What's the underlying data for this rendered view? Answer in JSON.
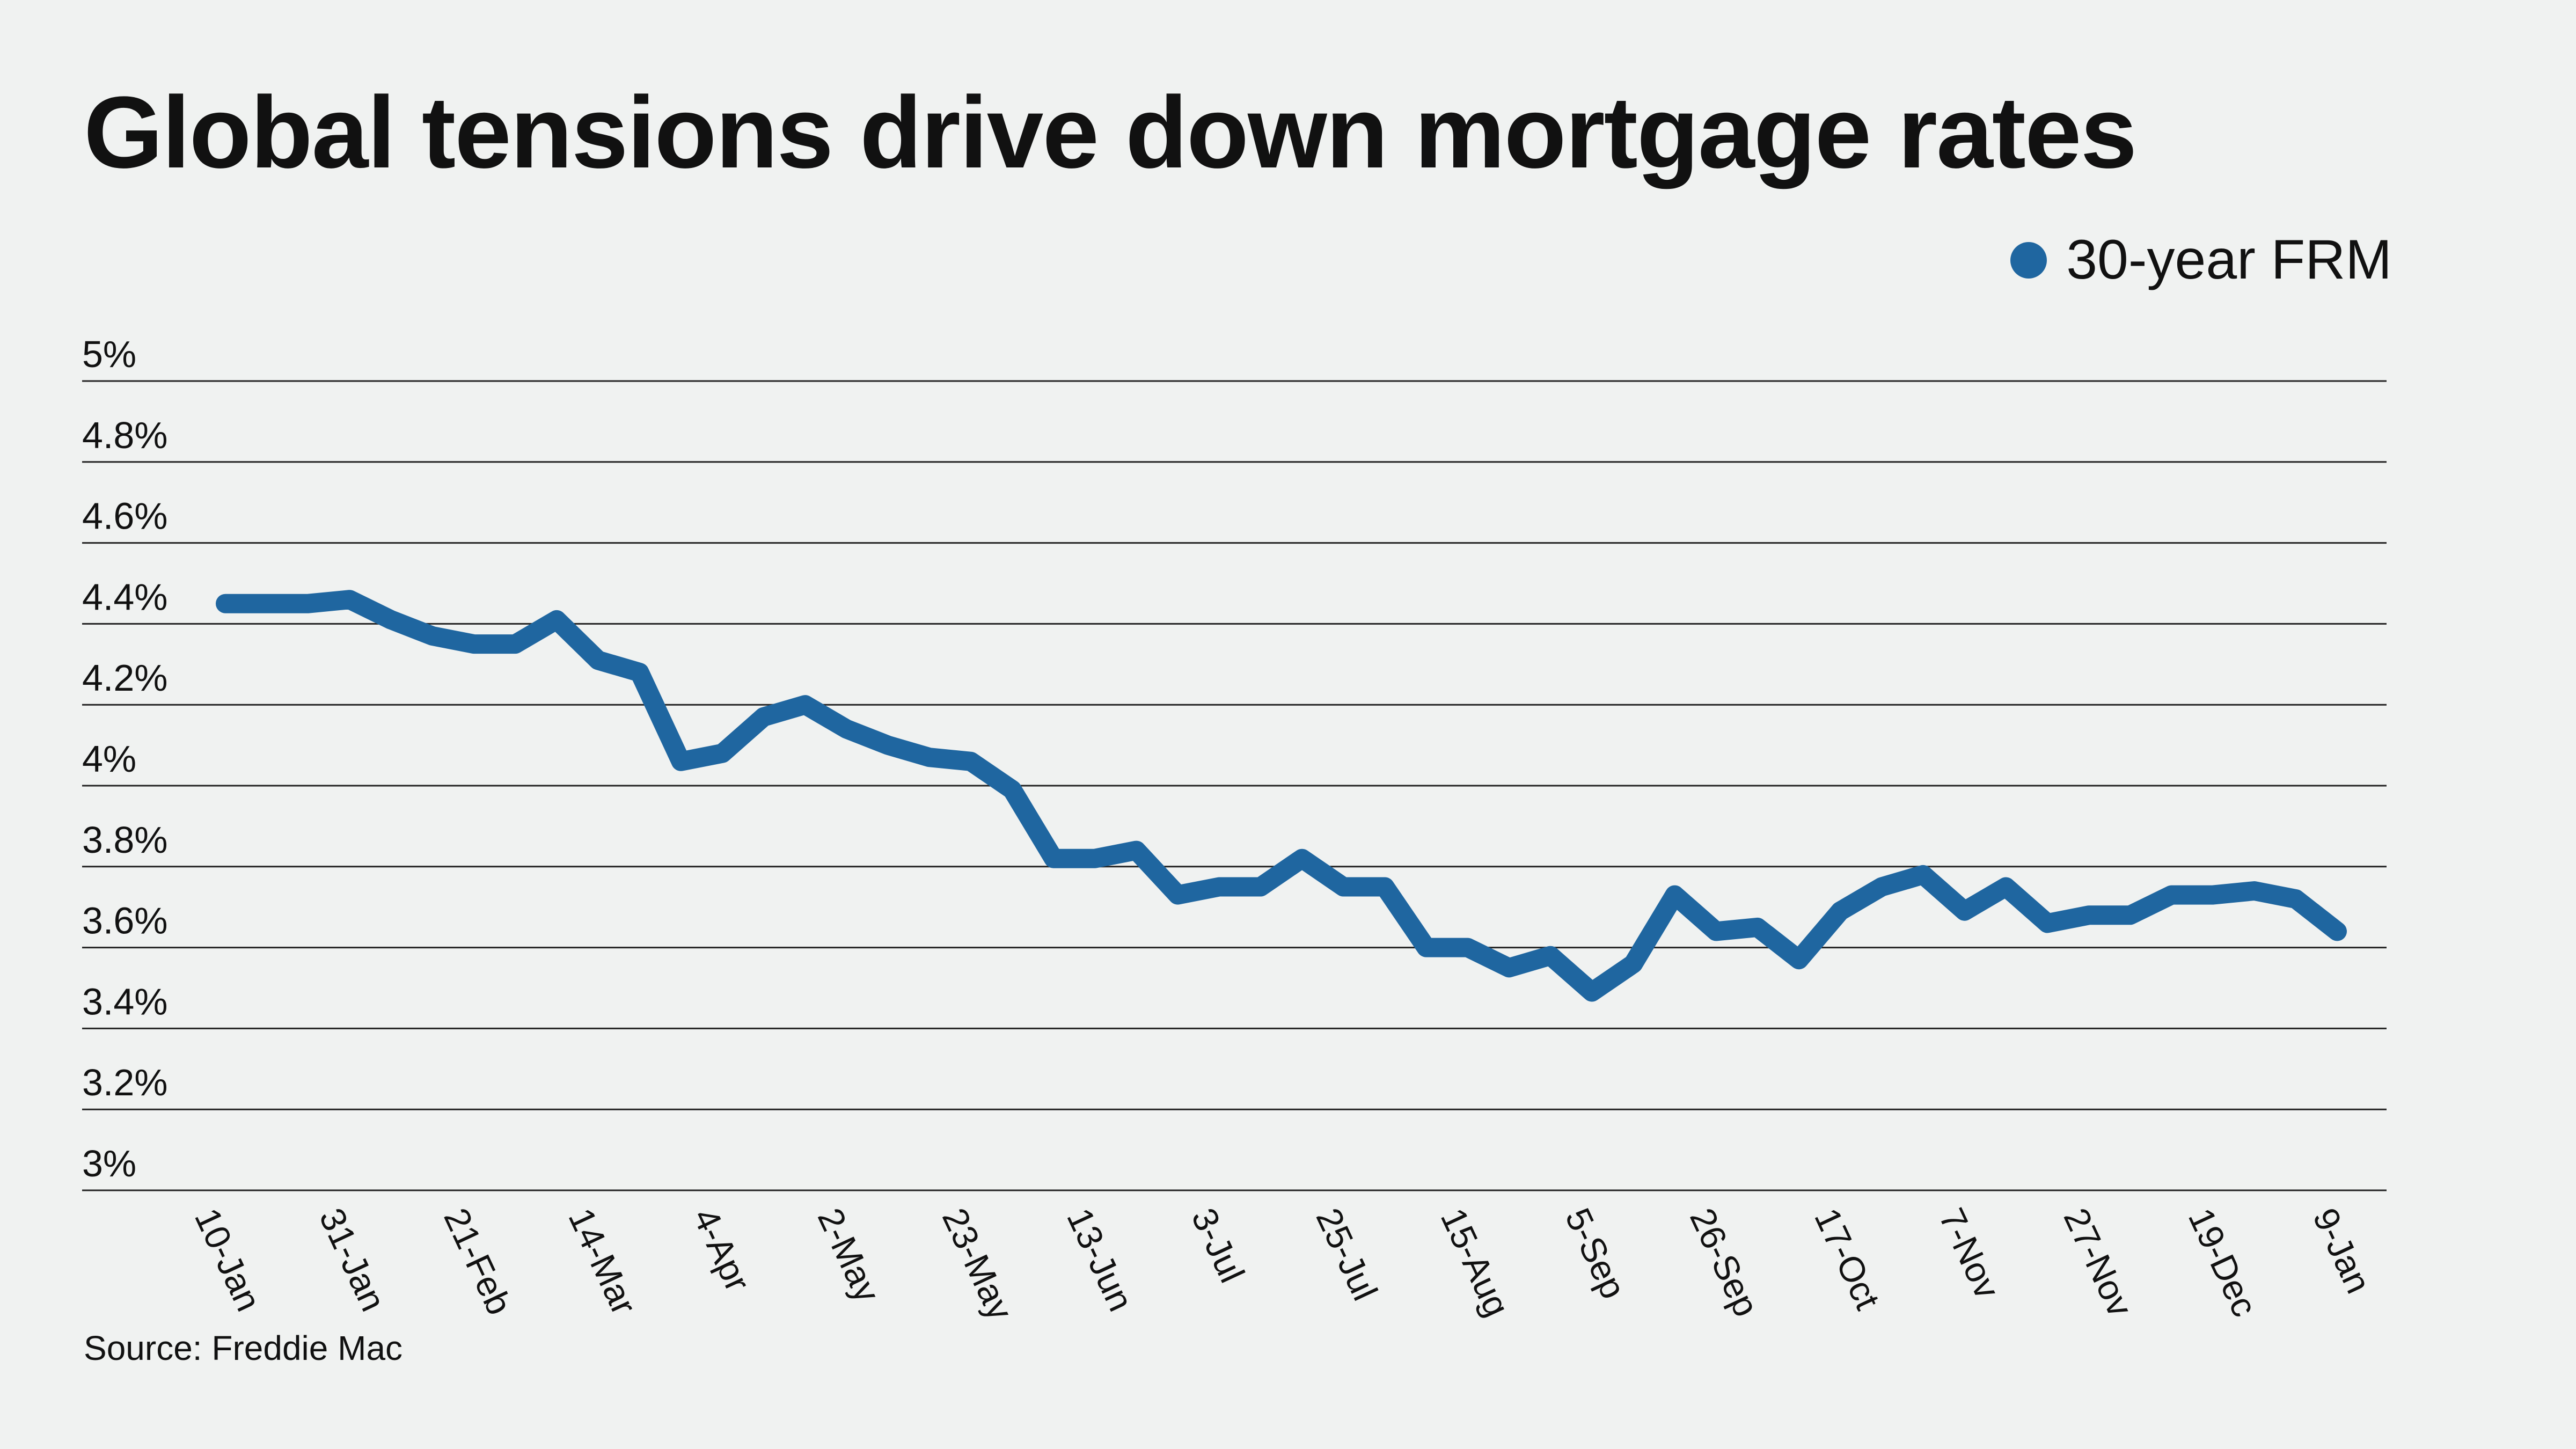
{
  "title": "Global tensions drive down mortgage rates",
  "source": "Source: Freddie Mac",
  "colors": {
    "line": "#1f66a0",
    "background": "#f0f2f1",
    "grid": "#222222"
  },
  "chart_data": {
    "type": "line",
    "title": "Global tensions drive down mortgage rates",
    "xlabel": "",
    "ylabel": "",
    "ylim": [
      3,
      5
    ],
    "y_ticks": [
      "5%",
      "4.8%",
      "4.6%",
      "4.4%",
      "4.2%",
      "4%",
      "3.8%",
      "3.6%",
      "3.4%",
      "3.2%",
      "3%"
    ],
    "x_ticks": [
      "10-Jan",
      "31-Jan",
      "21-Feb",
      "14-Mar",
      "4-Apr",
      "2-May",
      "23-May",
      "13-Jun",
      "3-Jul",
      "25-Jul",
      "15-Aug",
      "5-Sep",
      "26-Sep",
      "17-Oct",
      "7-Nov",
      "27-Nov",
      "19-Dec",
      "9-Jan"
    ],
    "grid": true,
    "legend": "top-right",
    "series": [
      {
        "name": "30-year FRM",
        "color": "#1f66a0",
        "values": [
          4.45,
          4.45,
          4.45,
          4.46,
          4.41,
          4.37,
          4.35,
          4.35,
          4.41,
          4.31,
          4.28,
          4.06,
          4.08,
          4.17,
          4.2,
          4.14,
          4.1,
          4.07,
          4.06,
          3.99,
          3.82,
          3.82,
          3.84,
          3.73,
          3.75,
          3.75,
          3.82,
          3.75,
          3.75,
          3.6,
          3.6,
          3.55,
          3.58,
          3.49,
          3.56,
          3.73,
          3.64,
          3.65,
          3.57,
          3.69,
          3.75,
          3.78,
          3.69,
          3.75,
          3.66,
          3.68,
          3.68,
          3.73,
          3.73,
          3.74,
          3.72,
          3.64
        ]
      }
    ]
  }
}
